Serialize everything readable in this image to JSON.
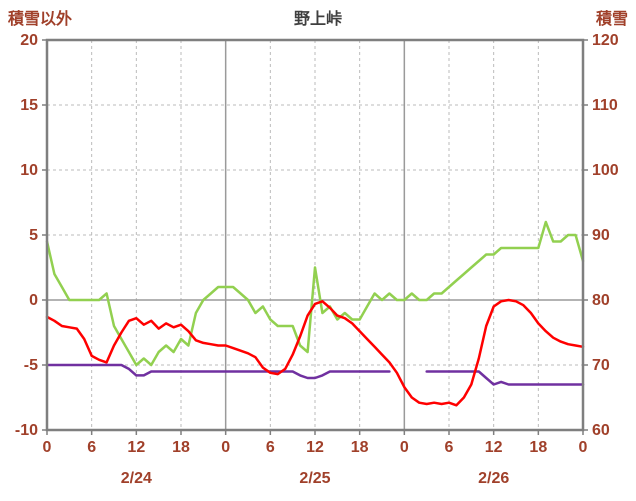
{
  "colors": {
    "background": "#ffffff",
    "axis_text": "#a0402a",
    "title_text": "#3f3f3f",
    "grid_dashed": "#bbbbbb",
    "grid_solid": "#9a9a9a",
    "border": "#7f7f7f",
    "red": "#ff0000",
    "green": "#92d050",
    "purple": "#7030a0"
  },
  "chart_data": {
    "type": "line",
    "title": "野上峠",
    "left_axis": {
      "title": "積雪以外",
      "min": -10,
      "max": 20,
      "ticks": [
        20,
        15,
        10,
        5,
        0,
        -5,
        -10
      ]
    },
    "right_axis": {
      "title": "積雪",
      "min": 60,
      "max": 120,
      "ticks": [
        120,
        110,
        100,
        90,
        80,
        70,
        60
      ]
    },
    "x_max": 72,
    "x_ticks": [
      0,
      6,
      12,
      18,
      24,
      30,
      36,
      42,
      48,
      54,
      60,
      66,
      72
    ],
    "x_tick_labels": [
      "0",
      "6",
      "12",
      "18",
      "0",
      "6",
      "12",
      "18",
      "0",
      "6",
      "12",
      "18",
      "0"
    ],
    "day_lines": [
      24,
      48
    ],
    "date_labels": [
      {
        "label": "2/24",
        "x": 12
      },
      {
        "label": "2/25",
        "x": 36
      },
      {
        "label": "2/26",
        "x": 60
      }
    ],
    "grid": true,
    "legend": "none",
    "series": [
      {
        "name": "green-line",
        "axis": "right",
        "color": "#92d050",
        "x_start": 0,
        "x_step": 1,
        "values": [
          89,
          84,
          82,
          80,
          80,
          80,
          80,
          80,
          81,
          76,
          74,
          72,
          70,
          71,
          70,
          72,
          73,
          72,
          74,
          73,
          78,
          80,
          81,
          82,
          82,
          82,
          81,
          80,
          78,
          79,
          77,
          76,
          76,
          76,
          73,
          72,
          85,
          78,
          79,
          77,
          78,
          77,
          77,
          79,
          81,
          80,
          81,
          80,
          80,
          81,
          80,
          80,
          81,
          81,
          82,
          83,
          84,
          85,
          86,
          87,
          87,
          88,
          88,
          88,
          88,
          88,
          88,
          92,
          89,
          89,
          90,
          90,
          86
        ]
      },
      {
        "name": "purple-line",
        "axis": "left",
        "color": "#7030a0",
        "x_start": 0,
        "x_step": 1,
        "values": [
          -5,
          -5,
          -5,
          -5,
          -5,
          -5,
          -5,
          -5,
          -5,
          -5,
          -5,
          -5.3,
          -5.8,
          -5.8,
          -5.5,
          -5.5,
          -5.5,
          -5.5,
          -5.5,
          -5.5,
          -5.5,
          -5.5,
          -5.5,
          -5.5,
          -5.5,
          -5.5,
          -5.5,
          -5.5,
          -5.5,
          -5.5,
          -5.5,
          -5.5,
          -5.5,
          -5.5,
          -5.8,
          -6.0,
          -6.0,
          -5.8,
          -5.5,
          -5.5,
          -5.5,
          -5.5,
          -5.5,
          -5.5,
          -5.5,
          -5.5,
          -5.5,
          null,
          null,
          null,
          null,
          -5.5,
          -5.5,
          -5.5,
          -5.5,
          -5.5,
          -5.5,
          -5.5,
          -5.5,
          -6.0,
          -6.5,
          -6.3,
          -6.5,
          -6.5,
          -6.5,
          -6.5,
          -6.5,
          -6.5,
          -6.5,
          -6.5,
          -6.5,
          -6.5,
          -6.5
        ]
      },
      {
        "name": "red-line",
        "axis": "left",
        "color": "#ff0000",
        "x_start": 0,
        "x_step": 1,
        "values": [
          -1.3,
          -1.6,
          -2.0,
          -2.1,
          -2.2,
          -3.0,
          -4.3,
          -4.6,
          -4.8,
          -3.5,
          -2.5,
          -1.6,
          -1.4,
          -1.9,
          -1.6,
          -2.2,
          -1.8,
          -2.1,
          -1.9,
          -2.4,
          -3.1,
          -3.3,
          -3.4,
          -3.5,
          -3.5,
          -3.7,
          -3.9,
          -4.1,
          -4.4,
          -5.2,
          -5.6,
          -5.7,
          -5.3,
          -4.2,
          -2.8,
          -1.2,
          -0.3,
          -0.1,
          -0.6,
          -1.2,
          -1.4,
          -1.8,
          -2.4,
          -3.0,
          -3.6,
          -4.2,
          -4.8,
          -5.6,
          -6.7,
          -7.5,
          -7.9,
          -8.0,
          -7.9,
          -8.0,
          -7.9,
          -8.1,
          -7.5,
          -6.5,
          -4.5,
          -2.0,
          -0.5,
          -0.1,
          0.0,
          -0.1,
          -0.4,
          -1.0,
          -1.8,
          -2.4,
          -2.9,
          -3.2,
          -3.4,
          -3.5,
          -3.6
        ]
      }
    ]
  }
}
